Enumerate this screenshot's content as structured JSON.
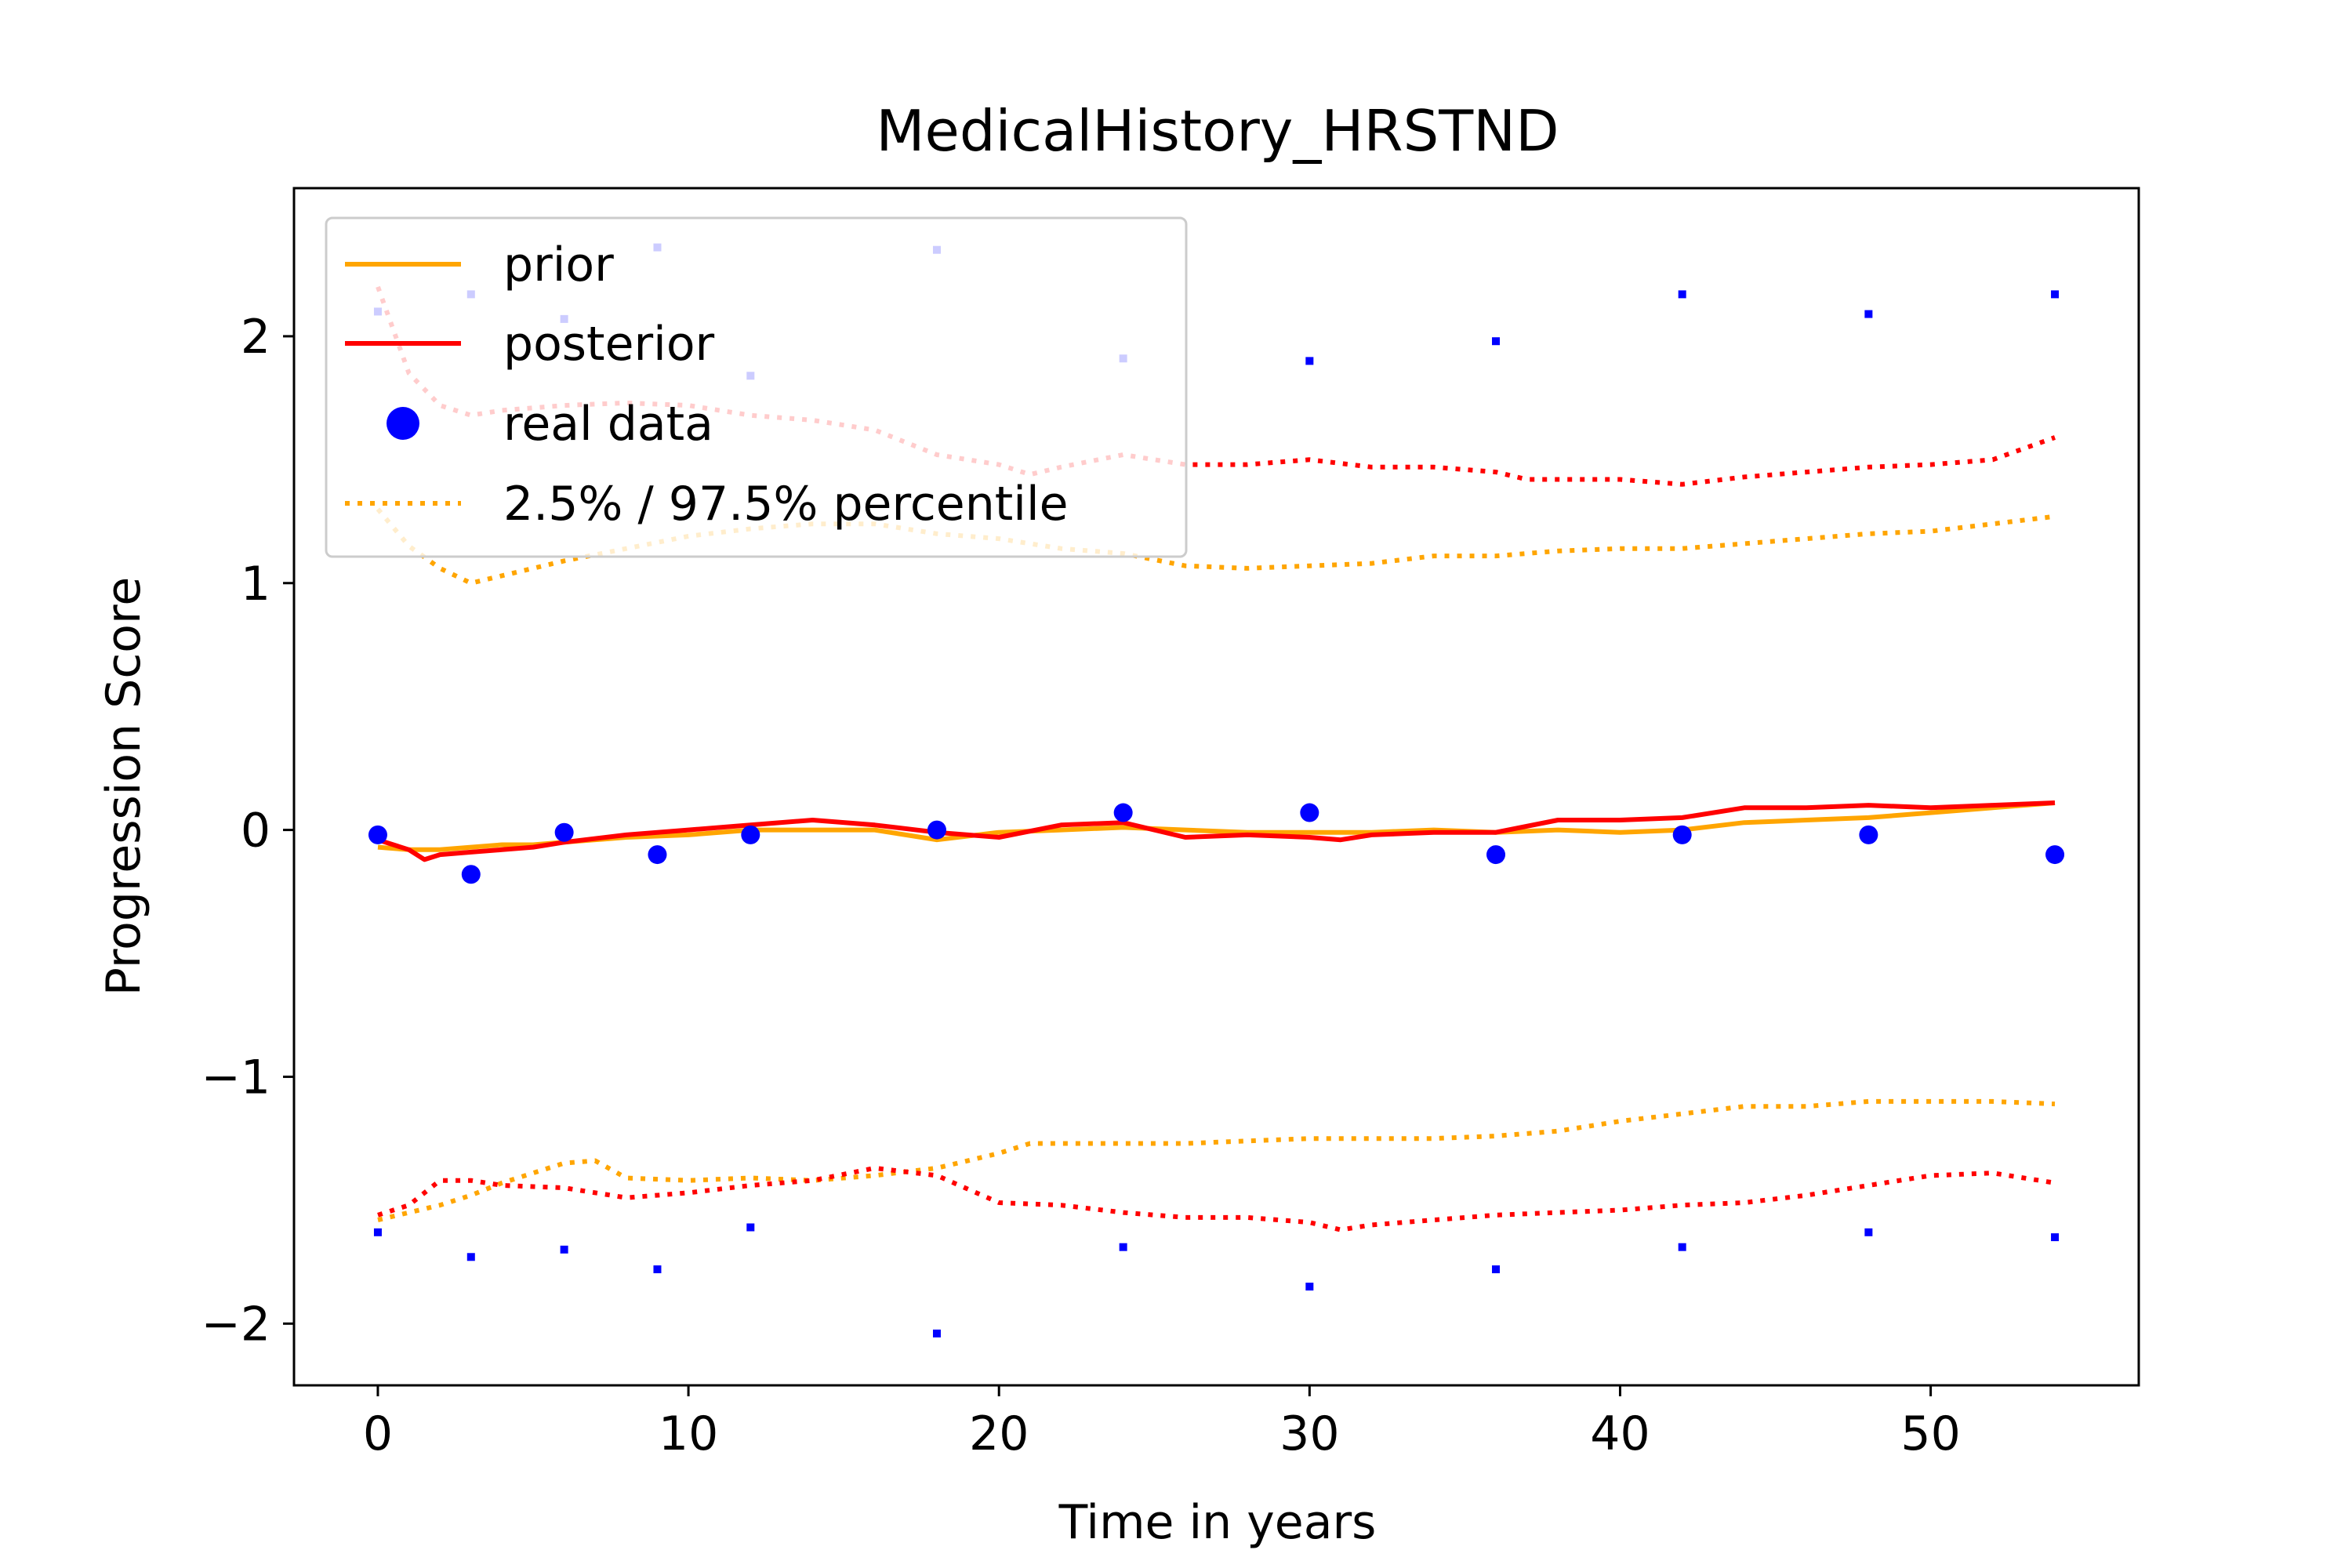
{
  "chart_data": {
    "type": "line",
    "title": "MedicalHistory_HRSTND",
    "xlabel": "Time in years",
    "ylabel": "Progression Score",
    "xlim": [
      -2.7,
      56.7
    ],
    "ylim": [
      -2.25,
      2.6
    ],
    "xticks": [
      0,
      10,
      20,
      30,
      40,
      50
    ],
    "xtick_labels": [
      "0",
      "10",
      "20",
      "30",
      "40",
      "50"
    ],
    "yticks": [
      -2,
      -1,
      0,
      1,
      2
    ],
    "ytick_labels": [
      "−2",
      "−1",
      "0",
      "1",
      "2"
    ],
    "grid": false,
    "legend_position": "upper-left",
    "legend": [
      {
        "label": "prior",
        "style": "solid-line",
        "color": "#ffa500"
      },
      {
        "label": "posterior",
        "style": "solid-line",
        "color": "#ff0000"
      },
      {
        "label": "real data",
        "style": "dot",
        "color": "#0000ff"
      },
      {
        "label": "2.5% / 97.5% percentile",
        "style": "dotted-line",
        "color": "#ffa500"
      }
    ],
    "series": [
      {
        "role": "prior-mean",
        "color": "#ffa500",
        "style": "solid",
        "x": [
          0,
          1,
          2,
          3,
          4,
          5,
          6,
          8,
          10,
          12,
          14,
          16,
          18,
          20,
          22,
          24,
          26,
          28,
          30,
          32,
          34,
          36,
          38,
          40,
          42,
          44,
          46,
          48,
          50,
          52,
          54
        ],
        "y": [
          -0.07,
          -0.08,
          -0.08,
          -0.07,
          -0.06,
          -0.06,
          -0.05,
          -0.03,
          -0.02,
          0.0,
          0.0,
          0.0,
          -0.04,
          -0.01,
          0.0,
          0.01,
          0.0,
          -0.01,
          -0.01,
          -0.01,
          0.0,
          -0.01,
          0.0,
          -0.01,
          0.0,
          0.03,
          0.04,
          0.05,
          0.07,
          0.09,
          0.11
        ]
      },
      {
        "role": "posterior-mean",
        "color": "#ff0000",
        "style": "solid",
        "x": [
          0,
          1,
          1.5,
          2,
          3,
          4,
          5,
          6,
          8,
          10,
          12,
          14,
          16,
          18,
          20,
          22,
          24,
          26,
          28,
          30,
          31,
          32,
          34,
          36,
          38,
          40,
          42,
          44,
          46,
          48,
          50,
          52,
          54
        ],
        "y": [
          -0.04,
          -0.08,
          -0.12,
          -0.1,
          -0.09,
          -0.08,
          -0.07,
          -0.05,
          -0.02,
          0.0,
          0.02,
          0.04,
          0.02,
          -0.01,
          -0.03,
          0.02,
          0.03,
          -0.03,
          -0.02,
          -0.03,
          -0.04,
          -0.02,
          -0.01,
          -0.01,
          0.04,
          0.04,
          0.05,
          0.09,
          0.09,
          0.1,
          0.09,
          0.1,
          0.11
        ]
      },
      {
        "role": "prior-upper-97.5",
        "color": "#ffa500",
        "style": "dotted",
        "x": [
          0,
          1,
          2,
          3,
          4,
          5,
          6,
          8,
          10,
          12,
          14,
          16,
          18,
          20,
          22,
          24,
          26,
          28,
          30,
          32,
          34,
          36,
          38,
          40,
          42,
          44,
          46,
          48,
          50,
          52,
          54
        ],
        "y": [
          1.3,
          1.15,
          1.06,
          1.0,
          1.03,
          1.06,
          1.09,
          1.14,
          1.19,
          1.22,
          1.24,
          1.24,
          1.2,
          1.18,
          1.14,
          1.12,
          1.07,
          1.06,
          1.07,
          1.08,
          1.11,
          1.11,
          1.13,
          1.14,
          1.14,
          1.16,
          1.18,
          1.2,
          1.21,
          1.24,
          1.27
        ]
      },
      {
        "role": "prior-lower-2.5",
        "color": "#ffa500",
        "style": "dotted",
        "x": [
          0,
          1,
          2,
          3,
          4,
          5,
          6,
          7,
          8,
          10,
          12,
          14,
          16,
          18,
          20,
          21,
          22,
          24,
          26,
          28,
          30,
          32,
          34,
          36,
          38,
          40,
          42,
          44,
          46,
          48,
          50,
          52,
          54
        ],
        "y": [
          -1.58,
          -1.55,
          -1.52,
          -1.48,
          -1.43,
          -1.39,
          -1.35,
          -1.34,
          -1.41,
          -1.42,
          -1.41,
          -1.42,
          -1.4,
          -1.37,
          -1.31,
          -1.27,
          -1.27,
          -1.27,
          -1.27,
          -1.26,
          -1.25,
          -1.25,
          -1.25,
          -1.24,
          -1.22,
          -1.18,
          -1.15,
          -1.12,
          -1.12,
          -1.1,
          -1.1,
          -1.1,
          -1.11
        ]
      },
      {
        "role": "posterior-upper-97.5",
        "color": "#ff0000",
        "style": "dotted",
        "x": [
          0,
          1,
          2,
          3,
          4,
          6,
          8,
          10,
          12,
          14,
          16,
          18,
          20,
          21,
          22,
          24,
          26,
          28,
          30,
          32,
          34,
          36,
          37,
          38,
          40,
          42,
          44,
          46,
          48,
          50,
          52,
          54
        ],
        "y": [
          2.2,
          1.85,
          1.72,
          1.68,
          1.7,
          1.72,
          1.73,
          1.72,
          1.68,
          1.66,
          1.62,
          1.52,
          1.48,
          1.44,
          1.47,
          1.52,
          1.48,
          1.48,
          1.5,
          1.47,
          1.47,
          1.45,
          1.42,
          1.42,
          1.42,
          1.4,
          1.43,
          1.45,
          1.47,
          1.48,
          1.5,
          1.59
        ]
      },
      {
        "role": "posterior-lower-2.5",
        "color": "#ff0000",
        "style": "dotted",
        "x": [
          0,
          1,
          2,
          3,
          4,
          6,
          8,
          10,
          12,
          14,
          16,
          18,
          20,
          22,
          24,
          26,
          28,
          30,
          31,
          32,
          34,
          36,
          38,
          40,
          42,
          44,
          46,
          48,
          50,
          52,
          54
        ],
        "y": [
          -1.56,
          -1.52,
          -1.42,
          -1.42,
          -1.44,
          -1.45,
          -1.49,
          -1.47,
          -1.44,
          -1.42,
          -1.37,
          -1.4,
          -1.51,
          -1.52,
          -1.55,
          -1.57,
          -1.57,
          -1.59,
          -1.62,
          -1.6,
          -1.58,
          -1.56,
          -1.55,
          -1.54,
          -1.52,
          -1.51,
          -1.48,
          -1.44,
          -1.4,
          -1.39,
          -1.43
        ]
      }
    ],
    "real_data": {
      "color": "#0000ff",
      "x": [
        0,
        3,
        6,
        9,
        12,
        18,
        24,
        30,
        36,
        42,
        48,
        54
      ],
      "y": [
        -0.02,
        -0.18,
        -0.01,
        -0.1,
        -0.02,
        0.0,
        0.07,
        0.07,
        -0.1,
        -0.02,
        -0.02,
        -0.1
      ],
      "upper_x": [
        0,
        3,
        6,
        9,
        12,
        18,
        24,
        30,
        36,
        42,
        48,
        54
      ],
      "upper_y": [
        2.1,
        2.17,
        2.07,
        2.36,
        1.84,
        2.35,
        1.91,
        1.9,
        1.98,
        2.17,
        2.09,
        2.17
      ],
      "lower_x": [
        0,
        3,
        6,
        9,
        12,
        18,
        24,
        30,
        36,
        42,
        48,
        54
      ],
      "lower_y": [
        -1.63,
        -1.73,
        -1.7,
        -1.78,
        -1.61,
        -2.04,
        -1.69,
        -1.85,
        -1.78,
        -1.69,
        -1.63,
        -1.65
      ]
    }
  }
}
